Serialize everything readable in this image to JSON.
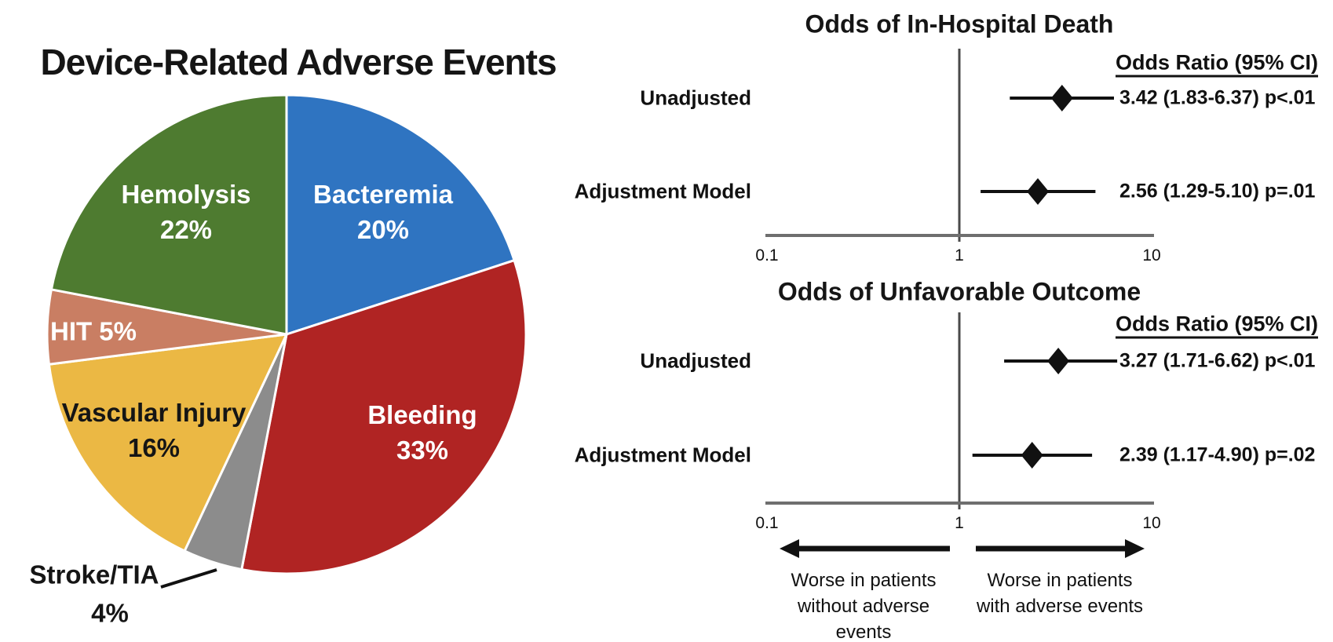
{
  "chart_data": [
    {
      "type": "pie",
      "title": "Device-Related Adverse Events",
      "slices": [
        {
          "name": "Bacteremia",
          "pct": 20,
          "value_label": "20%",
          "color": "#2F74C1",
          "text_color": "#FFFFFF"
        },
        {
          "name": "Bleeding",
          "pct": 33,
          "value_label": "33%",
          "color": "#B02423",
          "text_color": "#FFFFFF"
        },
        {
          "name": "Stroke/TIA",
          "pct": 4,
          "value_label": "4%",
          "color": "#8C8C8C",
          "text_color": "#151515"
        },
        {
          "name": "Vascular Injury",
          "pct": 16,
          "value_label": "16%",
          "color": "#EBB844",
          "text_color": "#151515"
        },
        {
          "name": "HIT",
          "pct": 5,
          "value_label": "5%",
          "inline_label": "HIT 5%",
          "color": "#C97E63",
          "text_color": "#FFFFFF"
        },
        {
          "name": "Hemolysis",
          "pct": 22,
          "value_label": "22%",
          "color": "#4E7B30",
          "text_color": "#FFFFFF"
        }
      ]
    },
    {
      "type": "forest",
      "title": "Odds of In-Hospital Death",
      "column_header": "Odds Ratio (95% CI)",
      "axis": {
        "scale": "log",
        "ticks": [
          "0.1",
          "1",
          "10"
        ],
        "tick_values": [
          0.1,
          1,
          10
        ],
        "reference_line": 1
      },
      "rows": [
        {
          "label": "Unadjusted",
          "or": 3.42,
          "ci_low": 1.83,
          "ci_high": 6.37,
          "p": "p<.01",
          "display": "3.42 (1.83-6.37) p<.01"
        },
        {
          "label": "Adjustment Model",
          "or": 2.56,
          "ci_low": 1.29,
          "ci_high": 5.1,
          "p": "p=.01",
          "display": "2.56 (1.29-5.10) p=.01"
        }
      ]
    },
    {
      "type": "forest",
      "title": "Odds of Unfavorable Outcome",
      "column_header": "Odds Ratio (95% CI)",
      "axis": {
        "scale": "log",
        "ticks": [
          "0.1",
          "1",
          "10"
        ],
        "tick_values": [
          0.1,
          1,
          10
        ],
        "reference_line": 1
      },
      "rows": [
        {
          "label": "Unadjusted",
          "or": 3.27,
          "ci_low": 1.71,
          "ci_high": 6.62,
          "p": "p<.01",
          "display": "3.27 (1.71-6.62) p<.01"
        },
        {
          "label": "Adjustment Model",
          "or": 2.39,
          "ci_low": 1.17,
          "ci_high": 4.9,
          "p": "p=.02",
          "display": "2.39 (1.17-4.90) p=.02"
        }
      ],
      "annotations": {
        "left_arrow_label": [
          "Worse in patients",
          "without adverse",
          "events"
        ],
        "right_arrow_label": [
          "Worse in patients",
          "with adverse events"
        ]
      }
    }
  ]
}
